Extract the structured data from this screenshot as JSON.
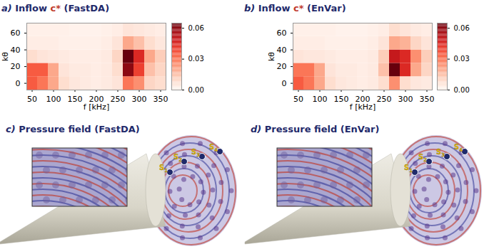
{
  "chart_data": [
    {
      "type": "heatmap",
      "title": "a) Inflow c* (FastDA)",
      "xlabel": "f [kHz]",
      "ylabel": "kθ",
      "x": [
        50,
        75,
        100,
        125,
        150,
        175,
        200,
        225,
        250,
        275,
        300,
        325,
        350
      ],
      "y": [
        0,
        16,
        32,
        48,
        64
      ],
      "values": [
        [
          0.035,
          0.03,
          0.02,
          0.008,
          0.005,
          0.004,
          0.003,
          0.004,
          0.006,
          0.03,
          0.025,
          0.01,
          0.008
        ],
        [
          0.035,
          0.035,
          0.02,
          0.006,
          0.004,
          0.004,
          0.003,
          0.004,
          0.008,
          0.06,
          0.04,
          0.015,
          0.01
        ],
        [
          0.008,
          0.006,
          0.005,
          0.004,
          0.003,
          0.003,
          0.003,
          0.004,
          0.01,
          0.065,
          0.045,
          0.02,
          0.012
        ],
        [
          0.003,
          0.003,
          0.003,
          0.002,
          0.002,
          0.002,
          0.002,
          0.003,
          0.006,
          0.02,
          0.015,
          0.008,
          0.005
        ],
        [
          0.002,
          0.002,
          0.002,
          0.002,
          0.001,
          0.001,
          0.001,
          0.002,
          0.003,
          0.006,
          0.005,
          0.004,
          0.003
        ]
      ],
      "xlim": [
        37.5,
        362.5
      ],
      "xticks": [
        50,
        100,
        150,
        200,
        250,
        300,
        350
      ],
      "ylim": [
        -8,
        72
      ],
      "yticks": [
        0,
        20,
        40,
        60
      ],
      "colorbar": {
        "range": [
          0,
          0.065
        ],
        "ticks": [
          {
            "value": 0,
            "label": "0.00"
          },
          {
            "value": 0.03,
            "label": "0.03"
          },
          {
            "value": 0.06,
            "label": "0.06"
          }
        ]
      }
    },
    {
      "type": "heatmap",
      "title": "b) Inflow c* (EnVar)",
      "xlabel": "f [kHz]",
      "ylabel": "kθ",
      "x": [
        50,
        75,
        100,
        125,
        150,
        175,
        200,
        225,
        250,
        275,
        300,
        325,
        350
      ],
      "y": [
        0,
        16,
        32,
        48,
        64
      ],
      "values": [
        [
          0.035,
          0.03,
          0.02,
          0.008,
          0.005,
          0.004,
          0.003,
          0.004,
          0.008,
          0.025,
          0.008,
          0.005,
          0.004
        ],
        [
          0.03,
          0.03,
          0.02,
          0.006,
          0.004,
          0.004,
          0.003,
          0.004,
          0.015,
          0.065,
          0.045,
          0.02,
          0.01
        ],
        [
          0.006,
          0.005,
          0.005,
          0.004,
          0.003,
          0.003,
          0.003,
          0.004,
          0.012,
          0.05,
          0.045,
          0.025,
          0.012
        ],
        [
          0.003,
          0.003,
          0.003,
          0.002,
          0.002,
          0.002,
          0.002,
          0.003,
          0.006,
          0.02,
          0.018,
          0.01,
          0.006
        ],
        [
          0.002,
          0.002,
          0.002,
          0.002,
          0.001,
          0.001,
          0.001,
          0.002,
          0.003,
          0.008,
          0.006,
          0.004,
          0.003
        ]
      ],
      "xlim": [
        37.5,
        362.5
      ],
      "xticks": [
        50,
        100,
        150,
        200,
        250,
        300,
        350
      ],
      "ylim": [
        -8,
        72
      ],
      "yticks": [
        0,
        20,
        40,
        60
      ],
      "colorbar": {
        "range": [
          0,
          0.065
        ],
        "ticks": [
          {
            "value": 0,
            "label": "0.00"
          },
          {
            "value": 0.03,
            "label": "0.03"
          },
          {
            "value": 0.06,
            "label": "0.06"
          }
        ]
      }
    }
  ],
  "renderings": [
    {
      "title": "c) Pressure field (FastDA)",
      "sensor_labels": [
        "S1",
        "S2",
        "S3",
        "S4"
      ]
    },
    {
      "title": "d) Pressure field (EnVar)",
      "sensor_labels": [
        "S1",
        "S2",
        "S3",
        "S4"
      ]
    }
  ]
}
